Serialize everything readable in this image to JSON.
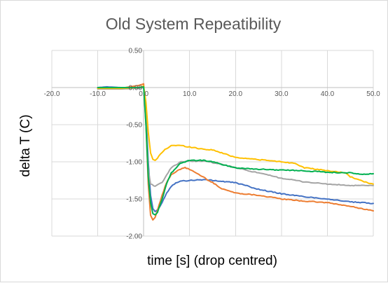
{
  "chart_data": {
    "type": "line",
    "title": "Old System Repeatibility",
    "xlabel": "time [s] (drop centred)",
    "ylabel": "delta T (C)",
    "xlim": [
      -20,
      50
    ],
    "ylim": [
      -2,
      0.5
    ],
    "x_ticks": [
      -20,
      -10,
      0,
      10,
      20,
      30,
      40,
      50
    ],
    "x_tick_labels": [
      "-20.0",
      "-10.0",
      "0.0",
      "10.0",
      "20.0",
      "30.0",
      "40.0",
      "50.0"
    ],
    "y_ticks": [
      0.5,
      0,
      -0.5,
      -1,
      -1.5,
      -2
    ],
    "y_tick_labels": [
      "0.50",
      "0.00",
      "-0.50",
      "-1.00",
      "-1.50",
      "-2.00"
    ],
    "grid": true,
    "legend": "none",
    "series": [
      {
        "color": "#4472c4",
        "points": [
          [
            -10,
            0.0
          ],
          [
            -8,
            0.01
          ],
          [
            -5,
            0.0
          ],
          [
            -3,
            -0.01
          ],
          [
            -1,
            0.0
          ],
          [
            0,
            0.01
          ],
          [
            0.5,
            -0.3
          ],
          [
            1,
            -1.0
          ],
          [
            1.5,
            -1.45
          ],
          [
            2,
            -1.63
          ],
          [
            2.5,
            -1.67
          ],
          [
            3,
            -1.65
          ],
          [
            4,
            -1.55
          ],
          [
            5,
            -1.42
          ],
          [
            6,
            -1.33
          ],
          [
            7,
            -1.28
          ],
          [
            8,
            -1.26
          ],
          [
            10,
            -1.25
          ],
          [
            13,
            -1.24
          ],
          [
            15,
            -1.25
          ],
          [
            18,
            -1.27
          ],
          [
            20,
            -1.28
          ],
          [
            25,
            -1.37
          ],
          [
            30,
            -1.43
          ],
          [
            35,
            -1.47
          ],
          [
            40,
            -1.5
          ],
          [
            45,
            -1.54
          ],
          [
            50,
            -1.56
          ]
        ]
      },
      {
        "color": "#ed7d31",
        "points": [
          [
            -10,
            -0.01
          ],
          [
            -5,
            -0.01
          ],
          [
            -3,
            0.01
          ],
          [
            -1,
            0.03
          ],
          [
            0,
            0.05
          ],
          [
            0.5,
            -0.5
          ],
          [
            1,
            -1.3
          ],
          [
            1.5,
            -1.72
          ],
          [
            2,
            -1.78
          ],
          [
            2.5,
            -1.75
          ],
          [
            3,
            -1.65
          ],
          [
            4,
            -1.45
          ],
          [
            5,
            -1.28
          ],
          [
            6,
            -1.17
          ],
          [
            8,
            -1.1
          ],
          [
            9,
            -1.08
          ],
          [
            10,
            -1.1
          ],
          [
            12,
            -1.17
          ],
          [
            15,
            -1.28
          ],
          [
            17,
            -1.36
          ],
          [
            20,
            -1.42
          ],
          [
            25,
            -1.45
          ],
          [
            30,
            -1.5
          ],
          [
            35,
            -1.53
          ],
          [
            40,
            -1.55
          ],
          [
            45,
            -1.6
          ],
          [
            50,
            -1.66
          ]
        ]
      },
      {
        "color": "#a5a5a5",
        "points": [
          [
            -10,
            -0.02
          ],
          [
            -5,
            -0.02
          ],
          [
            -1,
            -0.01
          ],
          [
            0,
            0.0
          ],
          [
            0.5,
            -0.4
          ],
          [
            1,
            -1.1
          ],
          [
            1.5,
            -1.3
          ],
          [
            2.5,
            -1.33
          ],
          [
            4,
            -1.28
          ],
          [
            5,
            -1.18
          ],
          [
            6,
            -1.08
          ],
          [
            8,
            -1.0
          ],
          [
            10,
            -0.99
          ],
          [
            13,
            -0.99
          ],
          [
            15,
            -1.01
          ],
          [
            18,
            -1.05
          ],
          [
            20,
            -1.08
          ],
          [
            25,
            -1.15
          ],
          [
            30,
            -1.22
          ],
          [
            35,
            -1.27
          ],
          [
            40,
            -1.3
          ],
          [
            45,
            -1.32
          ],
          [
            50,
            -1.32
          ]
        ]
      },
      {
        "color": "#ffc000",
        "points": [
          [
            -10,
            -0.01
          ],
          [
            -5,
            -0.01
          ],
          [
            -1,
            0.0
          ],
          [
            0,
            0.02
          ],
          [
            0.5,
            -0.2
          ],
          [
            1,
            -0.6
          ],
          [
            1.5,
            -0.88
          ],
          [
            2,
            -0.97
          ],
          [
            2.5,
            -0.98
          ],
          [
            3,
            -0.95
          ],
          [
            4,
            -0.87
          ],
          [
            5,
            -0.82
          ],
          [
            6,
            -0.78
          ],
          [
            8,
            -0.78
          ],
          [
            10,
            -0.8
          ],
          [
            13,
            -0.83
          ],
          [
            15,
            -0.84
          ],
          [
            18,
            -0.9
          ],
          [
            20,
            -0.94
          ],
          [
            25,
            -0.97
          ],
          [
            30,
            -1.0
          ],
          [
            33,
            -1.02
          ],
          [
            35,
            -1.08
          ],
          [
            40,
            -1.12
          ],
          [
            44,
            -1.15
          ],
          [
            45,
            -1.2
          ],
          [
            48,
            -1.27
          ],
          [
            50,
            -1.3
          ]
        ]
      },
      {
        "color": "#00b050",
        "points": [
          [
            -10,
            0.0
          ],
          [
            -5,
            0.0
          ],
          [
            -1,
            0.0
          ],
          [
            0,
            0.01
          ],
          [
            0.5,
            -0.5
          ],
          [
            1,
            -1.2
          ],
          [
            1.5,
            -1.55
          ],
          [
            2,
            -1.7
          ],
          [
            2.5,
            -1.72
          ],
          [
            3,
            -1.68
          ],
          [
            4,
            -1.5
          ],
          [
            5,
            -1.3
          ],
          [
            6,
            -1.15
          ],
          [
            8,
            -1.02
          ],
          [
            10,
            -0.98
          ],
          [
            13,
            -0.98
          ],
          [
            15,
            -1.0
          ],
          [
            18,
            -1.05
          ],
          [
            20,
            -1.08
          ],
          [
            25,
            -1.1
          ],
          [
            30,
            -1.11
          ],
          [
            35,
            -1.12
          ],
          [
            40,
            -1.14
          ],
          [
            45,
            -1.15
          ],
          [
            48,
            -1.17
          ],
          [
            50,
            -1.16
          ]
        ]
      }
    ]
  }
}
